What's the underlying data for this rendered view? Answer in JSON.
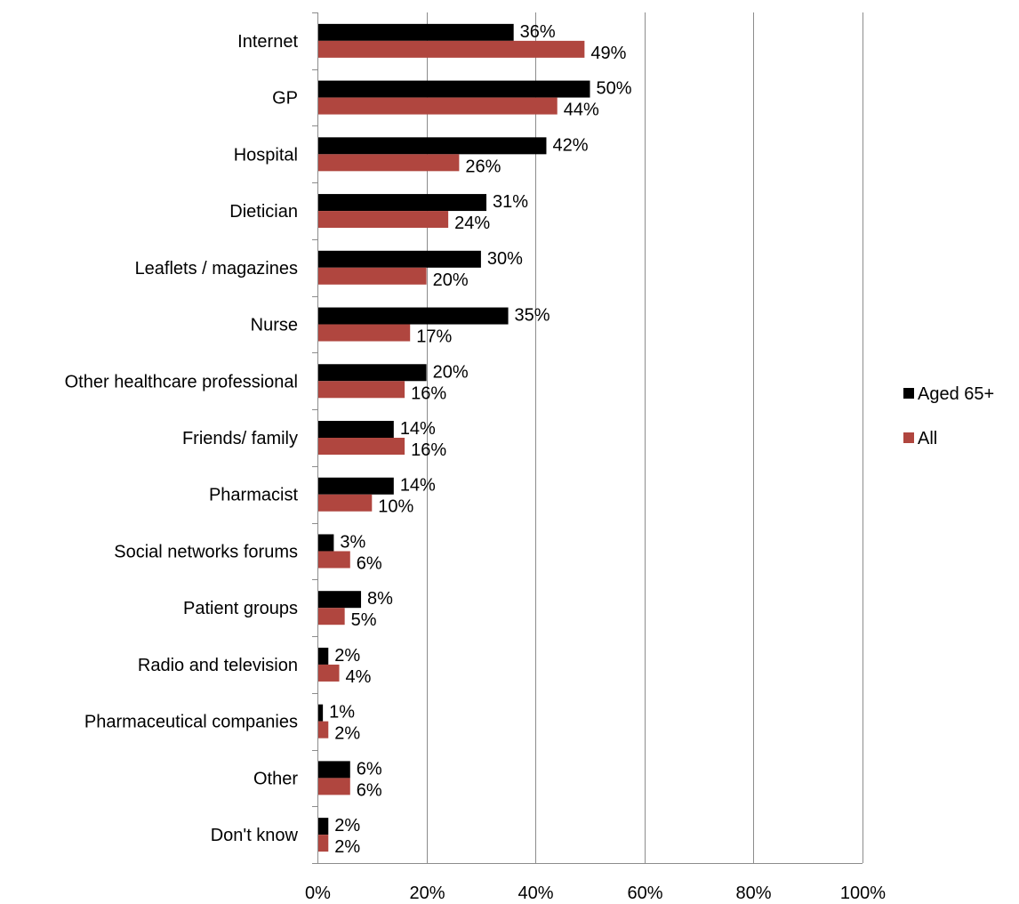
{
  "chart_data": {
    "type": "bar",
    "orientation": "horizontal",
    "categories": [
      "Internet",
      "GP",
      "Hospital",
      "Dietician",
      "Leaflets / magazines",
      "Nurse",
      "Other healthcare professional",
      "Friends/ family",
      "Pharmacist",
      "Social networks forums",
      "Patient groups",
      "Radio and television",
      "Pharmaceutical companies",
      "Other",
      "Don't know"
    ],
    "series": [
      {
        "name": "Aged 65+",
        "color": "#000000",
        "values": [
          36,
          50,
          42,
          31,
          30,
          35,
          20,
          14,
          14,
          3,
          8,
          2,
          1,
          6,
          2
        ]
      },
      {
        "name": "All",
        "color": "#b0463f",
        "values": [
          49,
          44,
          26,
          24,
          20,
          17,
          16,
          16,
          10,
          6,
          5,
          4,
          2,
          6,
          2
        ]
      }
    ],
    "xlim": [
      0,
      100
    ],
    "xticks": [
      "0%",
      "20%",
      "40%",
      "60%",
      "80%",
      "100%"
    ],
    "value_suffix": "%",
    "grid": "vertical",
    "gridline_color": "#8c8c8c",
    "legend_position": "right"
  }
}
